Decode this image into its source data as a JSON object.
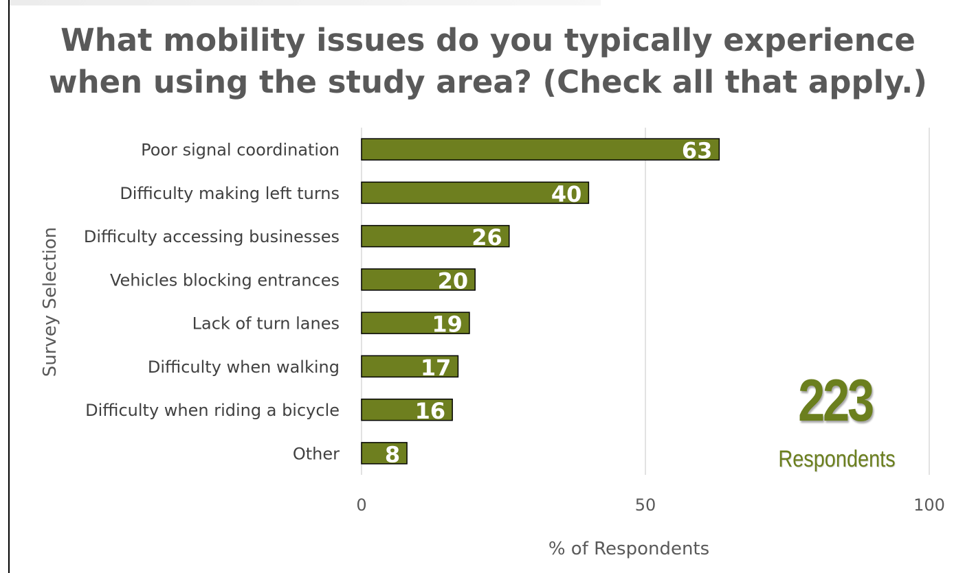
{
  "chart_data": {
    "type": "bar",
    "orientation": "horizontal",
    "title": "What mobility issues do you typically experience when using the study area? (Check all that apply.)",
    "xlabel": "% of Respondents",
    "ylabel": "Survey Selection",
    "categories": [
      "Poor signal coordination",
      "Difficulty making left turns",
      "Difficulty accessing businesses",
      "Vehicles blocking entrances",
      "Lack of turn lanes",
      "Difficulty when walking",
      "Difficulty when riding a bicycle",
      "Other"
    ],
    "values": [
      63,
      40,
      26,
      20,
      19,
      17,
      16,
      8
    ],
    "xlim": [
      0,
      100
    ],
    "xticks": [
      0,
      50,
      100
    ],
    "grid": "vertical",
    "bar_color": "#6e7f1f",
    "legend": "none"
  },
  "callout": {
    "number": "223",
    "label": "Respondents",
    "color": "#6b7f1e"
  }
}
